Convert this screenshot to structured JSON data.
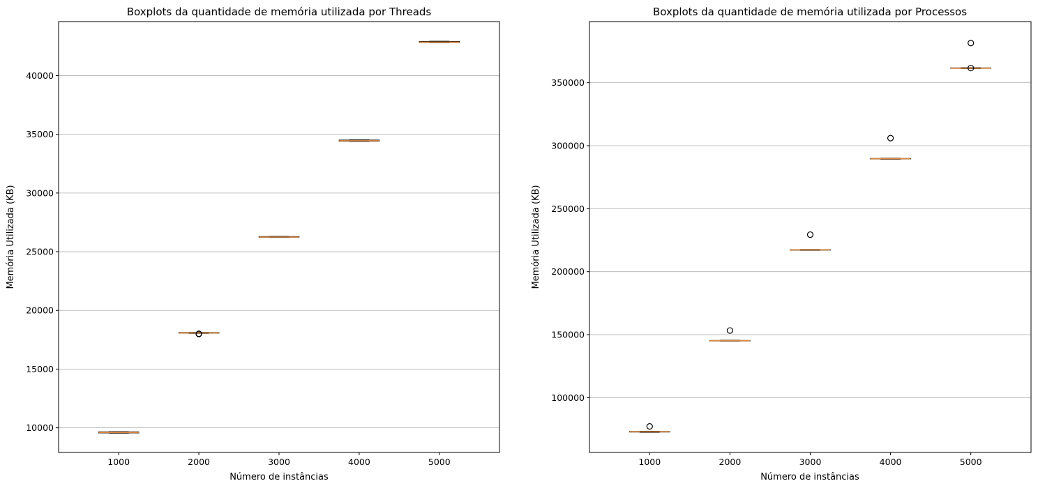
{
  "chart_data": [
    {
      "type": "boxplot",
      "title": "Boxplots da quantidade de memória utilizada por Threads",
      "xlabel": "Número de instâncias",
      "ylabel": "Memória Utilizada (KB)",
      "categories": [
        "1000",
        "2000",
        "3000",
        "4000",
        "5000"
      ],
      "ylim": [
        7900,
        44600
      ],
      "yticks": [
        10000,
        15000,
        20000,
        25000,
        30000,
        35000,
        40000
      ],
      "grid": "y",
      "boxes": [
        {
          "q1": 9560,
          "median": 9600,
          "q3": 9650,
          "whislo": 9540,
          "whishi": 9670,
          "fliers": []
        },
        {
          "q1": 18060,
          "median": 18080,
          "q3": 18120,
          "whislo": 18040,
          "whishi": 18130,
          "fliers": [
            17990,
            18010
          ]
        },
        {
          "q1": 26230,
          "median": 26250,
          "q3": 26290,
          "whislo": 26210,
          "whishi": 26300,
          "fliers": []
        },
        {
          "q1": 34410,
          "median": 34450,
          "q3": 34510,
          "whislo": 34390,
          "whishi": 34530,
          "fliers": []
        },
        {
          "q1": 42820,
          "median": 42850,
          "q3": 42910,
          "whislo": 42800,
          "whishi": 42930,
          "fliers": []
        }
      ]
    },
    {
      "type": "boxplot",
      "title": "Boxplots da quantidade de memória utilizada por Processos",
      "xlabel": "Número de instâncias",
      "ylabel": "Memória Utilizada (KB)",
      "categories": [
        "1000",
        "2000",
        "3000",
        "4000",
        "5000"
      ],
      "ylim": [
        56500,
        398500
      ],
      "yticks": [
        100000,
        150000,
        200000,
        250000,
        300000,
        350000
      ],
      "grid": "y",
      "boxes": [
        {
          "q1": 72700,
          "median": 72900,
          "q3": 73200,
          "whislo": 72500,
          "whishi": 73400,
          "fliers": [
            77200
          ]
        },
        {
          "q1": 145000,
          "median": 145200,
          "q3": 145400,
          "whislo": 144900,
          "whishi": 145600,
          "fliers": [
            153300
          ]
        },
        {
          "q1": 217100,
          "median": 217300,
          "q3": 217500,
          "whislo": 216900,
          "whishi": 217700,
          "fliers": [
            229400
          ]
        },
        {
          "q1": 289500,
          "median": 289700,
          "q3": 289900,
          "whislo": 289300,
          "whishi": 290100,
          "fliers": [
            306000
          ]
        },
        {
          "q1": 361400,
          "median": 361600,
          "q3": 361800,
          "whislo": 361200,
          "whishi": 362000,
          "fliers": [
            361600,
            381500
          ]
        }
      ]
    }
  ]
}
